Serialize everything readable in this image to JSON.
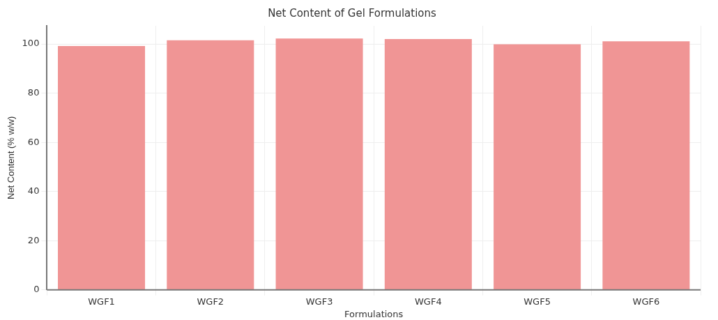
{
  "chart_data": {
    "type": "bar",
    "title": "Net Content of Gel Formulations",
    "xlabel": "Formulations",
    "ylabel": "Net Content (% w/w)",
    "categories": [
      "WGF1",
      "WGF2",
      "WGF3",
      "WGF4",
      "WGF5",
      "WGF6"
    ],
    "values": [
      99.2,
      101.5,
      102.2,
      102,
      99.9,
      101.1
    ],
    "color": "#f09595",
    "ylim": [
      0,
      107.4
    ],
    "yticks": [
      0,
      20,
      40,
      60,
      80,
      100
    ],
    "grid": true
  }
}
